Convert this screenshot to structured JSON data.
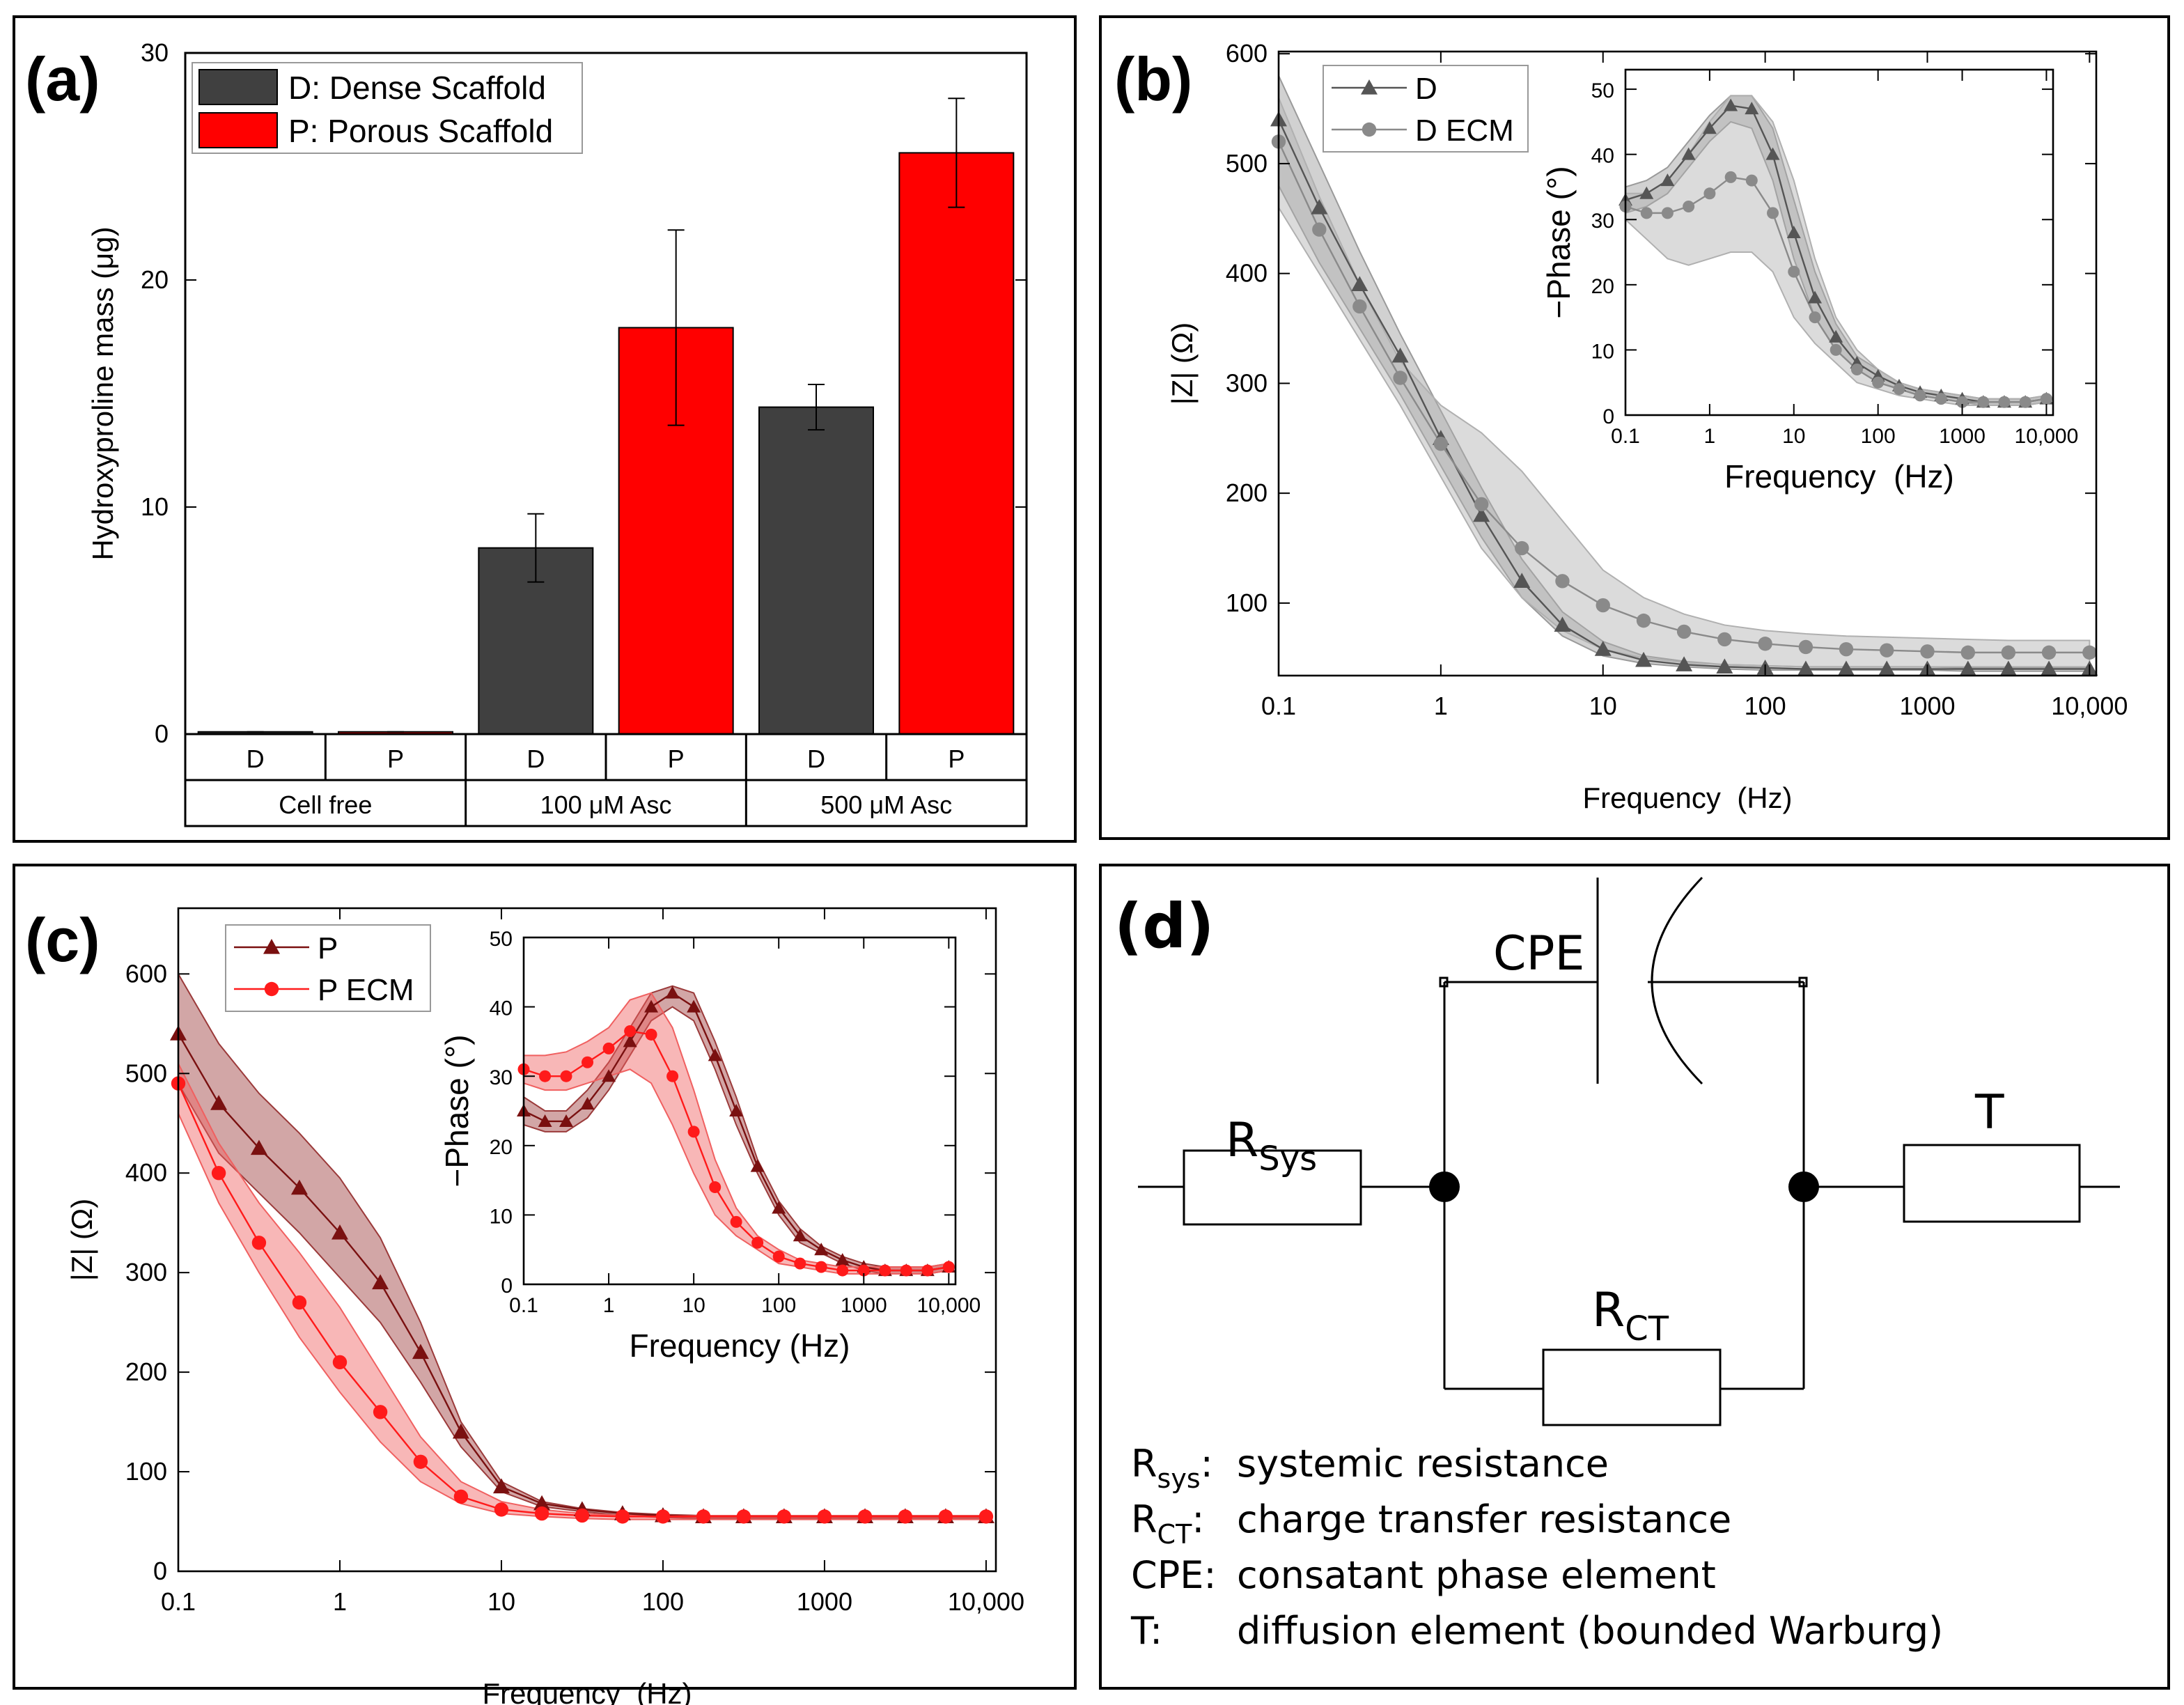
{
  "chart_data": [
    {
      "type": "bar",
      "label": "(a)",
      "ylabel": "Hydroxyproline mass (μg)",
      "categories": [
        "Cell free",
        "100 μM Asc",
        "500 μM Asc"
      ],
      "subcategories": [
        "D",
        "P",
        "D",
        "P",
        "D",
        "P"
      ],
      "series": [
        {
          "name": "D: Dense Scaffold",
          "color": "#404040",
          "values": [
            0.1,
            8.2,
            14.4
          ],
          "errors": [
            0,
            1.5,
            1.0
          ]
        },
        {
          "name": "P: Porous Scaffold",
          "color": "#ff0000",
          "values": [
            0.1,
            17.9,
            25.6
          ],
          "errors": [
            0,
            4.3,
            2.4
          ]
        }
      ],
      "ylim": [
        0,
        30
      ],
      "yticks": [
        0,
        10,
        20,
        30
      ],
      "legend": "upper left"
    },
    {
      "type": "line",
      "label": "(b)",
      "xlabel": "Frequency  (Hz)",
      "ylabel": "|Z| (Ω)",
      "xscale": "log",
      "x": [
        0.1,
        0.178,
        0.316,
        0.562,
        1,
        1.78,
        3.16,
        5.62,
        10,
        17.8,
        31.6,
        56.2,
        100,
        178,
        316,
        562,
        1000,
        1780,
        3160,
        5620,
        10000
      ],
      "series": [
        {
          "name": "D",
          "color": "#555555",
          "marker": "triangle",
          "band_color": "#9a9a9a",
          "values": [
            540,
            460,
            390,
            325,
            250,
            180,
            120,
            80,
            58,
            48,
            44,
            42,
            41,
            40,
            40,
            40,
            40,
            40,
            40,
            40,
            40
          ],
          "upper": [
            580,
            500,
            420,
            345,
            275,
            205,
            140,
            92,
            65,
            52,
            47,
            44,
            43,
            42,
            42,
            42,
            42,
            41,
            41,
            41,
            41
          ],
          "lower": [
            480,
            410,
            350,
            290,
            225,
            160,
            105,
            70,
            52,
            45,
            42,
            40,
            39,
            39,
            39,
            39,
            39,
            38,
            38,
            38,
            38
          ]
        },
        {
          "name": "D ECM",
          "color": "#8a8a8a",
          "marker": "circle",
          "band_color": "#b0b0b0",
          "values": [
            520,
            440,
            370,
            305,
            245,
            190,
            150,
            120,
            98,
            84,
            74,
            67,
            63,
            60,
            58,
            57,
            56,
            55,
            55,
            55,
            55
          ],
          "upper": [
            560,
            470,
            390,
            320,
            280,
            255,
            220,
            175,
            130,
            105,
            90,
            80,
            75,
            72,
            70,
            69,
            68,
            67,
            66,
            66,
            66
          ],
          "lower": [
            460,
            400,
            340,
            280,
            215,
            150,
            105,
            75,
            58,
            50,
            46,
            44,
            43,
            42,
            42,
            42,
            42,
            42,
            42,
            42,
            42
          ]
        }
      ],
      "xlim": [
        0.1,
        11000
      ],
      "xticks": [
        0.1,
        1,
        10,
        100,
        1000,
        {
          "value": 10000,
          "label": "10,000"
        }
      ],
      "ylim": [
        34,
        602
      ],
      "yticks": [
        100,
        200,
        300,
        400,
        500,
        600
      ],
      "legend": "upper left",
      "inset": {
        "type": "line",
        "xlabel": "Frequency  (Hz)",
        "ylabel": "−Phase (°)",
        "xscale": "log",
        "x": [
          0.1,
          0.178,
          0.316,
          0.562,
          1,
          1.78,
          3.16,
          5.62,
          10,
          17.8,
          31.6,
          56.2,
          100,
          178,
          316,
          562,
          1000,
          1780,
          3160,
          5620,
          10000
        ],
        "series": [
          {
            "name": "D",
            "color": "#555555",
            "marker": "triangle",
            "band_color": "#9a9a9a",
            "values": [
              33,
              34,
              36,
              40,
              44,
              47.5,
              47,
              40,
              28,
              18,
              12,
              8,
              6,
              4.5,
              3.5,
              3,
              2.5,
              2,
              2,
              2,
              2.5
            ],
            "upper": [
              35,
              36,
              38,
              42,
              46,
              49,
              49,
              44,
              33,
              22,
              14,
              9,
              7,
              5,
              4,
              3.5,
              3,
              2.5,
              2.5,
              2.5,
              3
            ],
            "lower": [
              31,
              32,
              34,
              38,
              42,
              45,
              44,
              36,
              24,
              15,
              10,
              7,
              5,
              4,
              3,
              2.5,
              2,
              1.5,
              1.5,
              1.5,
              2
            ]
          },
          {
            "name": "D ECM",
            "color": "#8a8a8a",
            "marker": "circle",
            "band_color": "#b0b0b0",
            "values": [
              32,
              31,
              31,
              32,
              34,
              36.5,
              36,
              31,
              22,
              15,
              10,
              7,
              5,
              4,
              3,
              2.5,
              2,
              2,
              2,
              2,
              2.5
            ],
            "upper": [
              34,
              34,
              36,
              40,
              45,
              49,
              49,
              45,
              36,
              24,
              15,
              10,
              7,
              5,
              4,
              3.5,
              3,
              2.5,
              2.5,
              2.5,
              3
            ],
            "lower": [
              30,
              27,
              24,
              23,
              24,
              25,
              25,
              22,
              15,
              11,
              8,
              5,
              4,
              3,
              2.5,
              2,
              1.5,
              1.5,
              1.5,
              1.5,
              2
            ]
          }
        ],
        "xlim": [
          0.1,
          12000
        ],
        "xticks": [
          0.1,
          1,
          10,
          100,
          1000,
          {
            "value": 10000,
            "label": "10,000"
          }
        ],
        "ylim": [
          0,
          53
        ],
        "yticks": [
          0,
          10,
          20,
          30,
          40,
          50
        ]
      }
    },
    {
      "type": "line",
      "label": "(c)",
      "xlabel": "Frequency  (Hz)",
      "ylabel": "|Z| (Ω)",
      "xscale": "log",
      "x": [
        0.1,
        0.178,
        0.316,
        0.562,
        1,
        1.78,
        3.16,
        5.62,
        10,
        17.8,
        31.6,
        56.2,
        100,
        178,
        316,
        562,
        1000,
        1780,
        3160,
        5620,
        10000
      ],
      "series": [
        {
          "name": "P",
          "color": "#7a1010",
          "marker": "triangle",
          "band_color": "#9b3a3a",
          "values": [
            540,
            470,
            425,
            385,
            340,
            290,
            220,
            140,
            85,
            68,
            62,
            58,
            56,
            55,
            55,
            55,
            55,
            55,
            55,
            55,
            55
          ],
          "upper": [
            600,
            530,
            480,
            440,
            395,
            335,
            250,
            150,
            90,
            70,
            63,
            59,
            57,
            56,
            56,
            56,
            56,
            56,
            56,
            56,
            56
          ],
          "lower": [
            490,
            420,
            380,
            340,
            295,
            250,
            190,
            125,
            80,
            65,
            60,
            56,
            54,
            53,
            53,
            53,
            53,
            53,
            53,
            53,
            53
          ]
        },
        {
          "name": "P ECM",
          "color": "#ff1a1a",
          "marker": "circle",
          "band_color": "#f06060",
          "values": [
            490,
            400,
            330,
            270,
            210,
            160,
            110,
            75,
            62,
            58,
            56,
            55,
            55,
            55,
            55,
            55,
            55,
            55,
            55,
            55,
            55
          ],
          "upper": [
            510,
            430,
            370,
            320,
            265,
            200,
            135,
            90,
            70,
            62,
            58,
            56,
            56,
            56,
            56,
            56,
            56,
            56,
            56,
            56,
            56
          ],
          "lower": [
            460,
            370,
            300,
            235,
            180,
            130,
            90,
            68,
            58,
            55,
            53,
            52,
            52,
            52,
            52,
            52,
            52,
            52,
            52,
            52,
            52
          ]
        }
      ],
      "xlim": [
        0.1,
        11500
      ],
      "xticks": [
        0.1,
        1,
        10,
        100,
        1000,
        {
          "value": 10000,
          "label": "10,000"
        }
      ],
      "ylim": [
        0,
        666
      ],
      "yticks": [
        0,
        100,
        200,
        300,
        400,
        500,
        600
      ],
      "legend": "upper left",
      "inset": {
        "type": "line",
        "xlabel": "Frequency (Hz)",
        "ylabel": "−Phase (°)",
        "xscale": "log",
        "x": [
          0.1,
          0.178,
          0.316,
          0.562,
          1,
          1.78,
          3.16,
          5.62,
          10,
          17.8,
          31.6,
          56.2,
          100,
          178,
          316,
          562,
          1000,
          1780,
          3160,
          5620,
          10000
        ],
        "series": [
          {
            "name": "P",
            "color": "#7a1010",
            "marker": "triangle",
            "band_color": "#9b3a3a",
            "values": [
              25,
              23.5,
              23.5,
              26,
              30,
              35,
              40,
              42,
              40,
              33,
              25,
              17,
              11,
              7,
              5,
              3.5,
              2.5,
              2,
              2,
              2,
              2.5
            ],
            "upper": [
              27,
              25,
              25,
              28,
              32,
              37,
              42,
              43,
              42,
              35,
              27,
              18,
              12,
              8,
              5.5,
              4,
              3,
              2.5,
              2.5,
              2.5,
              3
            ],
            "lower": [
              23,
              22,
              22,
              24,
              28,
              33,
              38,
              40,
              38,
              31,
              23,
              16,
              10,
              6,
              4.5,
              3,
              2,
              1.5,
              1.5,
              1.5,
              2
            ]
          },
          {
            "name": "P ECM",
            "color": "#ff1a1a",
            "marker": "circle",
            "band_color": "#f06060",
            "values": [
              31,
              30,
              30,
              32,
              34,
              36.5,
              36,
              30,
              22,
              14,
              9,
              6,
              4,
              3,
              2.5,
              2,
              2,
              2,
              2,
              2,
              2.5
            ],
            "upper": [
              33,
              33,
              33.5,
              35,
              37,
              41,
              42,
              37,
              28,
              18,
              11,
              7,
              5,
              3.5,
              3,
              2.5,
              2.5,
              2.5,
              2.5,
              2.5,
              3
            ],
            "lower": [
              29,
              28,
              28,
              29,
              30,
              31,
              29,
              23,
              16,
              10,
              7,
              5,
              3,
              2.5,
              2,
              1.5,
              1.5,
              1.5,
              1.5,
              1.5,
              2
            ]
          }
        ],
        "xlim": [
          0.1,
          12000
        ],
        "xticks": [
          0.1,
          1,
          10,
          100,
          1000,
          {
            "value": 10000,
            "label": "10,000"
          }
        ],
        "ylim": [
          0,
          50
        ],
        "yticks": [
          0,
          10,
          20,
          30,
          40,
          50
        ]
      }
    }
  ],
  "diagram": {
    "label": "(d)",
    "cpe": "CPE",
    "rsys": {
      "main": "R",
      "sub": "Sys"
    },
    "rct": {
      "main": "R",
      "sub": "CT"
    },
    "t": "T",
    "legend": [
      {
        "key": "R",
        "sub": "sys",
        "suffix": ":",
        "desc": "systemic resistance"
      },
      {
        "key": "R",
        "sub": "CT",
        "suffix": ":",
        "desc": "charge transfer resistance"
      },
      {
        "key": "CPE:",
        "desc": "consatant phase element"
      },
      {
        "key": "T:",
        "desc": "diffusion element (bounded Warburg)"
      }
    ]
  }
}
